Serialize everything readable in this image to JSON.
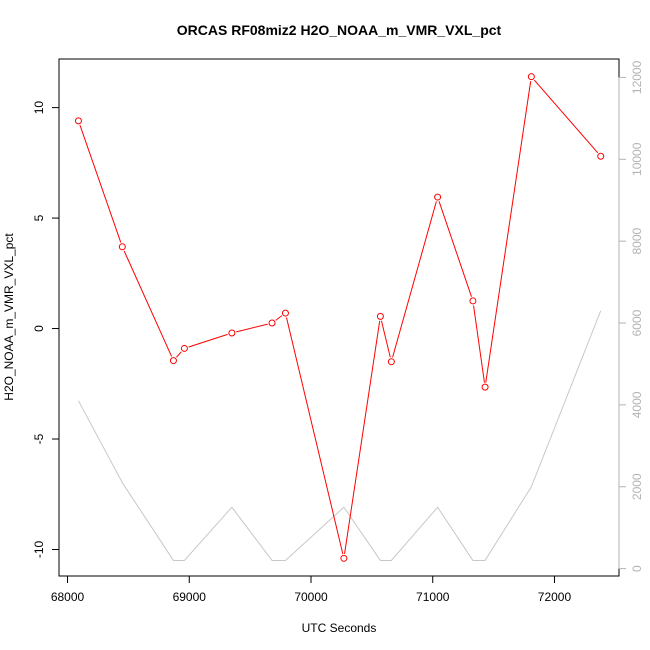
{
  "chart_data": {
    "type": "line",
    "title": "ORCAS RF08miz2 H2O_NOAA_m_VMR_VXL_pct",
    "xlabel": "UTC Seconds",
    "ylabel": "H2O_NOAA_m_VMR_VXL_pct",
    "xlim": [
      67930,
      72530
    ],
    "ylim": [
      -11.2,
      12.2
    ],
    "y2lim": [
      -180,
      12450
    ],
    "x_ticks": [
      68000,
      69000,
      70000,
      71000,
      72000
    ],
    "y_ticks": [
      -10,
      -5,
      0,
      5,
      10
    ],
    "y2_ticks": [
      0,
      2000,
      4000,
      6000,
      8000,
      10000,
      12000
    ],
    "grid": false,
    "series": [
      {
        "axis": "left",
        "color": "#ff0000",
        "marker": "open-circle",
        "x": [
          68090,
          68450,
          68870,
          68960,
          69350,
          69680,
          69790,
          70270,
          70570,
          70660,
          71040,
          71330,
          71430,
          71810,
          72380
        ],
        "y": [
          9.4,
          3.7,
          -1.45,
          -0.9,
          -0.2,
          0.25,
          0.7,
          -10.4,
          0.55,
          -1.5,
          5.95,
          1.25,
          -2.65,
          11.4,
          7.8
        ]
      },
      {
        "axis": "right",
        "color": "#c8c8c8",
        "marker": "none",
        "x": [
          68090,
          68450,
          68870,
          68960,
          69350,
          69680,
          69790,
          70270,
          70570,
          70660,
          71040,
          71330,
          71430,
          71810,
          72380
        ],
        "y": [
          4100,
          2100,
          200,
          200,
          1500,
          200,
          200,
          1500,
          200,
          200,
          1500,
          200,
          200,
          2000,
          6300
        ]
      }
    ]
  }
}
